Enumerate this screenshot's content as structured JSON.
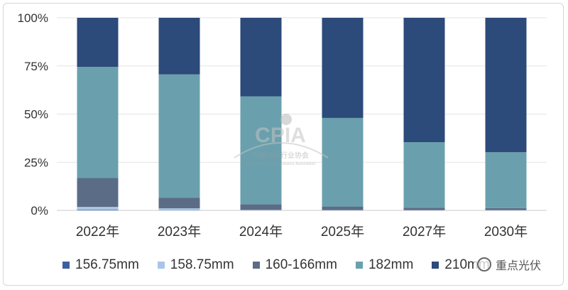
{
  "chart_data": {
    "type": "bar",
    "stacked": true,
    "normalized_percent": true,
    "categories": [
      "2022年",
      "2023年",
      "2024年",
      "2025年",
      "2027年",
      "2030年"
    ],
    "y_ticks": [
      "0%",
      "25%",
      "50%",
      "75%",
      "100%"
    ],
    "ylim": [
      0,
      100
    ],
    "grid": true,
    "legend_position": "bottom",
    "series": [
      {
        "name": "156.75mm",
        "color": "#3c5fa0",
        "values": [
          0.3,
          0.1,
          0.1,
          0.1,
          0.1,
          0.1
        ]
      },
      {
        "name": "158.75mm",
        "color": "#a9c6e8",
        "values": [
          1.5,
          1.0,
          0.2,
          0.1,
          0.1,
          0.1
        ]
      },
      {
        "name": "160-166mm",
        "color": "#5b6c87",
        "values": [
          15.0,
          5.5,
          2.9,
          1.8,
          1.2,
          1.0
        ]
      },
      {
        "name": "182mm",
        "color": "#6aa0ad",
        "values": [
          57.7,
          64.0,
          56.0,
          46.0,
          34.0,
          29.0
        ]
      },
      {
        "name": "210mm",
        "color": "#2c4a7a",
        "values": [
          25.5,
          29.4,
          40.8,
          52.0,
          64.6,
          69.8
        ]
      }
    ]
  },
  "watermark": {
    "logo_text": "CPIA",
    "org_cn": "中国光伏行业协会",
    "org_en": "China Photovoltaic Industry Association"
  },
  "badge": {
    "text": "重点光伏"
  }
}
